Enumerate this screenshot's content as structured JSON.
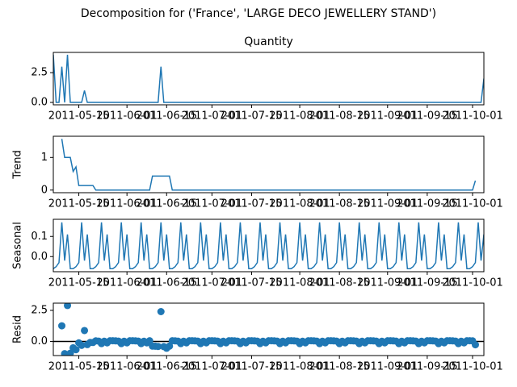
{
  "chart_data": {
    "title": "Decomposition for ('France', 'LARGE DECO JEWELLERY STAND')",
    "x": [
      "2011-05-06",
      "2011-05-07",
      "2011-05-08",
      "2011-05-09",
      "2011-05-10",
      "2011-05-11",
      "2011-05-12",
      "2011-05-13",
      "2011-05-14",
      "2011-05-15",
      "2011-05-16",
      "2011-05-17",
      "2011-05-18",
      "2011-05-19",
      "2011-05-20",
      "2011-05-21",
      "2011-05-22",
      "2011-05-23",
      "2011-05-24",
      "2011-05-25",
      "2011-05-26",
      "2011-05-27",
      "2011-05-28",
      "2011-05-29",
      "2011-05-30",
      "2011-05-31",
      "2011-06-01",
      "2011-06-02",
      "2011-06-03",
      "2011-06-04",
      "2011-06-05",
      "2011-06-06",
      "2011-06-07",
      "2011-06-08",
      "2011-06-09",
      "2011-06-10",
      "2011-06-11",
      "2011-06-12",
      "2011-06-13",
      "2011-06-14",
      "2011-06-15",
      "2011-06-16",
      "2011-06-17",
      "2011-06-18",
      "2011-06-19",
      "2011-06-20",
      "2011-06-21",
      "2011-06-22",
      "2011-06-23",
      "2011-06-24",
      "2011-06-25",
      "2011-06-26",
      "2011-06-27",
      "2011-06-28",
      "2011-06-29",
      "2011-06-30",
      "2011-07-01",
      "2011-07-02",
      "2011-07-03",
      "2011-07-04",
      "2011-07-05",
      "2011-07-06",
      "2011-07-07",
      "2011-07-08",
      "2011-07-09",
      "2011-07-10",
      "2011-07-11",
      "2011-07-12",
      "2011-07-13",
      "2011-07-14",
      "2011-07-15",
      "2011-07-16",
      "2011-07-17",
      "2011-07-18",
      "2011-07-19",
      "2011-07-20",
      "2011-07-21",
      "2011-07-22",
      "2011-07-23",
      "2011-07-24",
      "2011-07-25",
      "2011-07-26",
      "2011-07-27",
      "2011-07-28",
      "2011-07-29",
      "2011-07-30",
      "2011-07-31",
      "2011-08-01",
      "2011-08-02",
      "2011-08-03",
      "2011-08-04",
      "2011-08-05",
      "2011-08-06",
      "2011-08-07",
      "2011-08-08",
      "2011-08-09",
      "2011-08-10",
      "2011-08-11",
      "2011-08-12",
      "2011-08-13",
      "2011-08-14",
      "2011-08-15",
      "2011-08-16",
      "2011-08-17",
      "2011-08-18",
      "2011-08-19",
      "2011-08-20",
      "2011-08-21",
      "2011-08-22",
      "2011-08-23",
      "2011-08-24",
      "2011-08-25",
      "2011-08-26",
      "2011-08-27",
      "2011-08-28",
      "2011-08-29",
      "2011-08-30",
      "2011-08-31",
      "2011-09-01",
      "2011-09-02",
      "2011-09-03",
      "2011-09-04",
      "2011-09-05",
      "2011-09-06",
      "2011-09-07",
      "2011-09-08",
      "2011-09-09",
      "2011-09-10",
      "2011-09-11",
      "2011-09-12",
      "2011-09-13",
      "2011-09-14",
      "2011-09-15",
      "2011-09-16",
      "2011-09-17",
      "2011-09-18",
      "2011-09-19",
      "2011-09-20",
      "2011-09-21",
      "2011-09-22",
      "2011-09-23",
      "2011-09-24",
      "2011-09-25",
      "2011-09-26",
      "2011-09-27",
      "2011-09-28",
      "2011-09-29",
      "2011-09-30",
      "2011-10-01",
      "2011-10-02",
      "2011-10-03",
      "2011-10-04",
      "2011-10-05"
    ],
    "xlim": [
      "2011-05-06",
      "2011-10-05"
    ],
    "xticks": [
      "2011-05-15",
      "2011-06-01",
      "2011-06-15",
      "2011-07-01",
      "2011-07-15",
      "2011-08-01",
      "2011-08-15",
      "2011-09-01",
      "2011-09-15",
      "2011-10-01"
    ],
    "charts": [
      {
        "type": "line",
        "title": "Quantity",
        "color": "#1f77b4",
        "ylim": [
          -0.2,
          4.2
        ],
        "yticks": [
          {
            "value": 0,
            "label": "0.0"
          },
          {
            "value": 2.5,
            "label": "2.5"
          }
        ],
        "values": [
          4,
          0,
          0,
          3,
          0,
          4,
          0,
          0,
          0,
          0,
          0,
          1,
          0,
          0,
          0,
          0,
          0,
          0,
          0,
          0,
          0,
          0,
          0,
          0,
          0,
          0,
          0,
          0,
          0,
          0,
          0,
          0,
          0,
          0,
          0,
          0,
          0,
          0,
          3,
          0,
          0,
          0,
          0,
          0,
          0,
          0,
          0,
          0,
          0,
          0,
          0,
          0,
          0,
          0,
          0,
          0,
          0,
          0,
          0,
          0,
          0,
          0,
          0,
          0,
          0,
          0,
          0,
          0,
          0,
          0,
          0,
          0,
          0,
          0,
          0,
          0,
          0,
          0,
          0,
          0,
          0,
          0,
          0,
          0,
          0,
          0,
          0,
          0,
          0,
          0,
          0,
          0,
          0,
          0,
          0,
          0,
          0,
          0,
          0,
          0,
          0,
          0,
          0,
          0,
          0,
          0,
          0,
          0,
          0,
          0,
          0,
          0,
          0,
          0,
          0,
          0,
          0,
          0,
          0,
          0,
          0,
          0,
          0,
          0,
          0,
          0,
          0,
          0,
          0,
          0,
          0,
          0,
          0,
          0,
          0,
          0,
          0,
          0,
          0,
          0,
          0,
          0,
          0,
          0,
          0,
          0,
          0,
          0,
          0,
          0,
          0,
          0,
          2
        ]
      },
      {
        "type": "line",
        "ylabel": "Trend",
        "color": "#1f77b4",
        "ylim": [
          -0.08,
          1.65
        ],
        "yticks": [
          0,
          1
        ],
        "values": [
          null,
          null,
          null,
          1.57,
          1,
          1,
          1,
          0.57,
          0.71,
          0.14,
          0.14,
          0.14,
          0.14,
          0.14,
          0.14,
          0,
          0,
          0,
          0,
          0,
          0,
          0,
          0,
          0,
          0,
          0,
          0,
          0,
          0,
          0,
          0,
          0,
          0,
          0,
          0,
          0.43,
          0.43,
          0.43,
          0.43,
          0.43,
          0.43,
          0.43,
          0,
          0,
          0,
          0,
          0,
          0,
          0,
          0,
          0,
          0,
          0,
          0,
          0,
          0,
          0,
          0,
          0,
          0,
          0,
          0,
          0,
          0,
          0,
          0,
          0,
          0,
          0,
          0,
          0,
          0,
          0,
          0,
          0,
          0,
          0,
          0,
          0,
          0,
          0,
          0,
          0,
          0,
          0,
          0,
          0,
          0,
          0,
          0,
          0,
          0,
          0,
          0,
          0,
          0,
          0,
          0,
          0,
          0,
          0,
          0,
          0,
          0,
          0,
          0,
          0,
          0,
          0,
          0,
          0,
          0,
          0,
          0,
          0,
          0,
          0,
          0,
          0,
          0,
          0,
          0,
          0,
          0,
          0,
          0,
          0,
          0,
          0,
          0,
          0,
          0,
          0,
          0,
          0,
          0,
          0,
          0,
          0,
          0,
          0,
          0,
          0,
          0,
          0,
          0,
          0,
          0,
          0,
          0.29,
          null,
          null,
          null
        ]
      },
      {
        "type": "line",
        "ylabel": "Seasonal",
        "color": "#1f77b4",
        "ylim": [
          -0.075,
          0.185
        ],
        "yticks": [
          {
            "value": 0,
            "label": "0.0"
          },
          {
            "value": 0.1,
            "label": "0.1"
          }
        ],
        "values": [
          -0.06,
          -0.05,
          -0.03,
          0.17,
          -0.02,
          0.11,
          -0.06,
          -0.06,
          -0.05,
          -0.03,
          0.17,
          -0.02,
          0.11,
          -0.06,
          -0.06,
          -0.05,
          -0.03,
          0.17,
          -0.02,
          0.11,
          -0.06,
          -0.06,
          -0.05,
          -0.03,
          0.17,
          -0.02,
          0.11,
          -0.06,
          -0.06,
          -0.05,
          -0.03,
          0.17,
          -0.02,
          0.11,
          -0.06,
          -0.06,
          -0.05,
          -0.03,
          0.17,
          -0.02,
          0.11,
          -0.06,
          -0.06,
          -0.05,
          -0.03,
          0.17,
          -0.02,
          0.11,
          -0.06,
          -0.06,
          -0.05,
          -0.03,
          0.17,
          -0.02,
          0.11,
          -0.06,
          -0.06,
          -0.05,
          -0.03,
          0.17,
          -0.02,
          0.11,
          -0.06,
          -0.06,
          -0.05,
          -0.03,
          0.17,
          -0.02,
          0.11,
          -0.06,
          -0.06,
          -0.05,
          -0.03,
          0.17,
          -0.02,
          0.11,
          -0.06,
          -0.06,
          -0.05,
          -0.03,
          0.17,
          -0.02,
          0.11,
          -0.06,
          -0.06,
          -0.05,
          -0.03,
          0.17,
          -0.02,
          0.11,
          -0.06,
          -0.06,
          -0.05,
          -0.03,
          0.17,
          -0.02,
          0.11,
          -0.06,
          -0.06,
          -0.05,
          -0.03,
          0.17,
          -0.02,
          0.11,
          -0.06,
          -0.06,
          -0.05,
          -0.03,
          0.17,
          -0.02,
          0.11,
          -0.06,
          -0.06,
          -0.05,
          -0.03,
          0.17,
          -0.02,
          0.11,
          -0.06,
          -0.06,
          -0.05,
          -0.03,
          0.17,
          -0.02,
          0.11,
          -0.06,
          -0.06,
          -0.05,
          -0.03,
          0.17,
          -0.02,
          0.11,
          -0.06,
          -0.06,
          -0.05,
          -0.03,
          0.17,
          -0.02,
          0.11,
          -0.06,
          -0.06,
          -0.05,
          -0.03,
          0.17,
          -0.02,
          0.11,
          -0.06,
          -0.06,
          -0.05,
          -0.03,
          0.17,
          -0.02,
          0.11
        ]
      },
      {
        "type": "scatter",
        "ylabel": "Resid",
        "color": "#1f77b4",
        "ylim": [
          -1.13,
          3.08
        ],
        "yticks": [
          {
            "value": 0,
            "label": "0.0"
          },
          {
            "value": 2.5,
            "label": "2.5"
          }
        ],
        "values": [
          null,
          null,
          null,
          1.26,
          -0.98,
          2.89,
          -0.94,
          -0.51,
          -0.66,
          -0.11,
          -0.31,
          0.88,
          -0.25,
          -0.08,
          -0.08,
          0.05,
          0.03,
          -0.17,
          0.02,
          -0.11,
          0.06,
          0.06,
          0.05,
          0.03,
          -0.17,
          0.02,
          -0.11,
          0.06,
          0.06,
          0.05,
          0.03,
          -0.17,
          0.02,
          -0.11,
          0.06,
          -0.37,
          -0.38,
          -0.4,
          2.4,
          -0.41,
          -0.54,
          -0.37,
          0.06,
          0.05,
          0.03,
          -0.17,
          0.02,
          -0.11,
          0.06,
          0.06,
          0.05,
          0.03,
          -0.17,
          0.02,
          -0.11,
          0.06,
          0.06,
          0.05,
          0.03,
          -0.17,
          0.02,
          -0.11,
          0.06,
          0.06,
          0.05,
          0.03,
          -0.17,
          0.02,
          -0.11,
          0.06,
          0.06,
          0.05,
          0.03,
          -0.17,
          0.02,
          -0.11,
          0.06,
          0.06,
          0.05,
          0.03,
          -0.17,
          0.02,
          -0.11,
          0.06,
          0.06,
          0.05,
          0.03,
          -0.17,
          0.02,
          -0.11,
          0.06,
          0.06,
          0.05,
          0.03,
          -0.17,
          0.02,
          -0.11,
          0.06,
          0.06,
          0.05,
          0.03,
          -0.17,
          0.02,
          -0.11,
          0.06,
          0.06,
          0.05,
          0.03,
          -0.17,
          0.02,
          -0.11,
          0.06,
          0.06,
          0.05,
          0.03,
          -0.17,
          0.02,
          -0.11,
          0.06,
          0.06,
          0.05,
          0.03,
          -0.17,
          0.02,
          -0.11,
          0.06,
          0.06,
          0.05,
          0.03,
          -0.17,
          0.02,
          -0.11,
          0.06,
          0.06,
          0.05,
          0.03,
          -0.17,
          0.02,
          -0.11,
          0.06,
          0.06,
          0.05,
          0.03,
          -0.17,
          0.02,
          -0.11,
          0.06,
          0.06,
          0.05,
          -0.26,
          null,
          null,
          null
        ]
      }
    ]
  }
}
